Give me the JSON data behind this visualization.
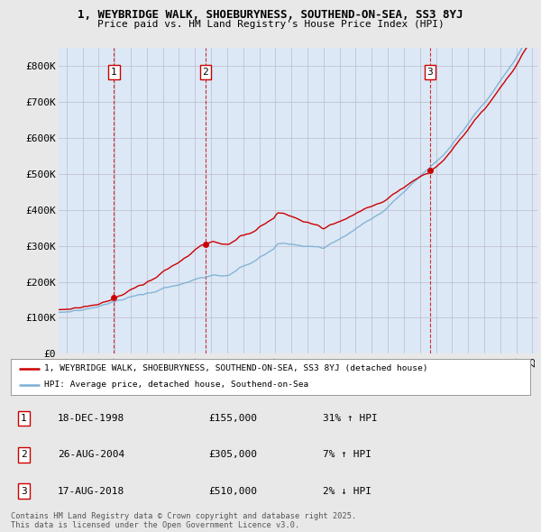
{
  "title_line1": "1, WEYBRIDGE WALK, SHOEBURYNESS, SOUTHEND-ON-SEA, SS3 8YJ",
  "title_line2": "Price paid vs. HM Land Registry's House Price Index (HPI)",
  "background_color": "#e8e8e8",
  "plot_bg_color": "#dce8f5",
  "ylim": [
    0,
    850000
  ],
  "yticks": [
    0,
    100000,
    200000,
    300000,
    400000,
    500000,
    600000,
    700000,
    800000
  ],
  "ytick_labels": [
    "£0",
    "£100K",
    "£200K",
    "£300K",
    "£400K",
    "£500K",
    "£600K",
    "£700K",
    "£800K"
  ],
  "legend_line1": "1, WEYBRIDGE WALK, SHOEBURYNESS, SOUTHEND-ON-SEA, SS3 8YJ (detached house)",
  "legend_line2": "HPI: Average price, detached house, Southend-on-Sea",
  "red_color": "#cc0000",
  "blue_color": "#7aafd4",
  "sale_year_floats": [
    1998.96,
    2004.65,
    2018.63
  ],
  "sale_prices": [
    155000,
    305000,
    510000
  ],
  "sale_labels": [
    "1",
    "2",
    "3"
  ],
  "sale_table": [
    {
      "num": "1",
      "date": "18-DEC-1998",
      "price": "£155,000",
      "hpi": "31% ↑ HPI"
    },
    {
      "num": "2",
      "date": "26-AUG-2004",
      "price": "£305,000",
      "hpi": "7% ↑ HPI"
    },
    {
      "num": "3",
      "date": "17-AUG-2018",
      "price": "£510,000",
      "hpi": "2% ↓ HPI"
    }
  ],
  "footer": "Contains HM Land Registry data © Crown copyright and database right 2025.\nThis data is licensed under the Open Government Licence v3.0.",
  "xstart": 1995.5,
  "xend": 2025.3
}
